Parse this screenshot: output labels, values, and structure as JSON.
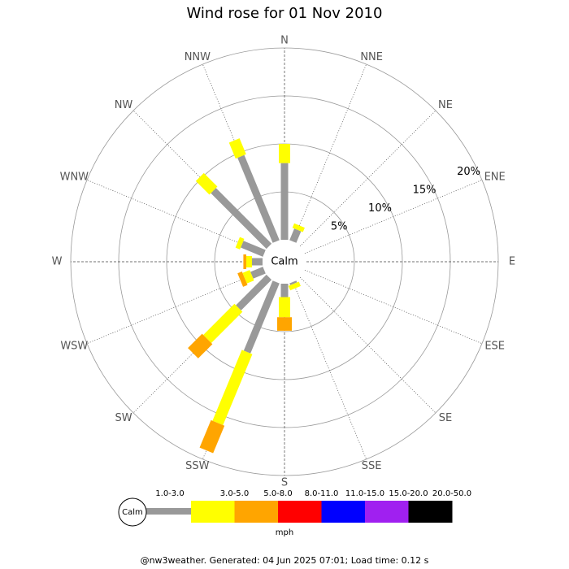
{
  "chart_data": {
    "type": "windrose",
    "title": "Wind rose for 01 Nov 2010",
    "categories": [
      "N",
      "NNE",
      "NE",
      "ENE",
      "E",
      "ESE",
      "SE",
      "SSE",
      "S",
      "SSW",
      "SW",
      "WSW",
      "W",
      "WNW",
      "NW",
      "NNW"
    ],
    "calm_label": "Calm",
    "rlim": [
      0,
      20
    ],
    "rticks": [
      {
        "value": 5,
        "label": "5%"
      },
      {
        "value": 10,
        "label": "10%"
      },
      {
        "value": 15,
        "label": "15%"
      },
      {
        "value": 20,
        "label": "20%"
      }
    ],
    "legend_unit": "mph",
    "series": [
      {
        "name": "1.0-3.0",
        "color": "#999999",
        "values": [
          8.0,
          1.3,
          0,
          0,
          0,
          0,
          0,
          0.2,
          1.4,
          7.9,
          4.5,
          1.4,
          1.1,
          2.5,
          8.2,
          9.6
        ]
      },
      {
        "name": "3.0-5.0",
        "color": "#ffff00",
        "values": [
          2.0,
          0.5,
          0,
          0,
          0,
          0,
          0,
          0.5,
          2.1,
          8.0,
          4.6,
          0.8,
          0.6,
          0.5,
          2.0,
          1.8
        ]
      },
      {
        "name": "5.0-8.0",
        "color": "#ffa500",
        "values": [
          0,
          0,
          0,
          0,
          0,
          0,
          0,
          0,
          1.4,
          3.1,
          2.1,
          0.5,
          0.3,
          0,
          0,
          0
        ]
      },
      {
        "name": "8.0-11.0",
        "color": "#ff0000",
        "values": [
          0,
          0,
          0,
          0,
          0,
          0,
          0,
          0,
          0,
          0,
          0,
          0,
          0,
          0,
          0,
          0
        ]
      },
      {
        "name": "11.0-15.0",
        "color": "#0000ff",
        "values": [
          0,
          0,
          0,
          0,
          0,
          0,
          0,
          0,
          0,
          0,
          0,
          0,
          0,
          0,
          0,
          0
        ]
      },
      {
        "name": "15.0-20.0",
        "color": "#a020f0",
        "values": [
          0,
          0,
          0,
          0,
          0,
          0,
          0,
          0,
          0,
          0,
          0,
          0,
          0,
          0,
          0,
          0
        ]
      },
      {
        "name": "20.0-50.0",
        "color": "#000000",
        "values": [
          0,
          0,
          0,
          0,
          0,
          0,
          0,
          0,
          0,
          0,
          0,
          0,
          0,
          0,
          0,
          0
        ]
      }
    ]
  },
  "footer": "@nw3weather. Generated: 04 Jun 2025 07:01; Load time: 0.12 s"
}
